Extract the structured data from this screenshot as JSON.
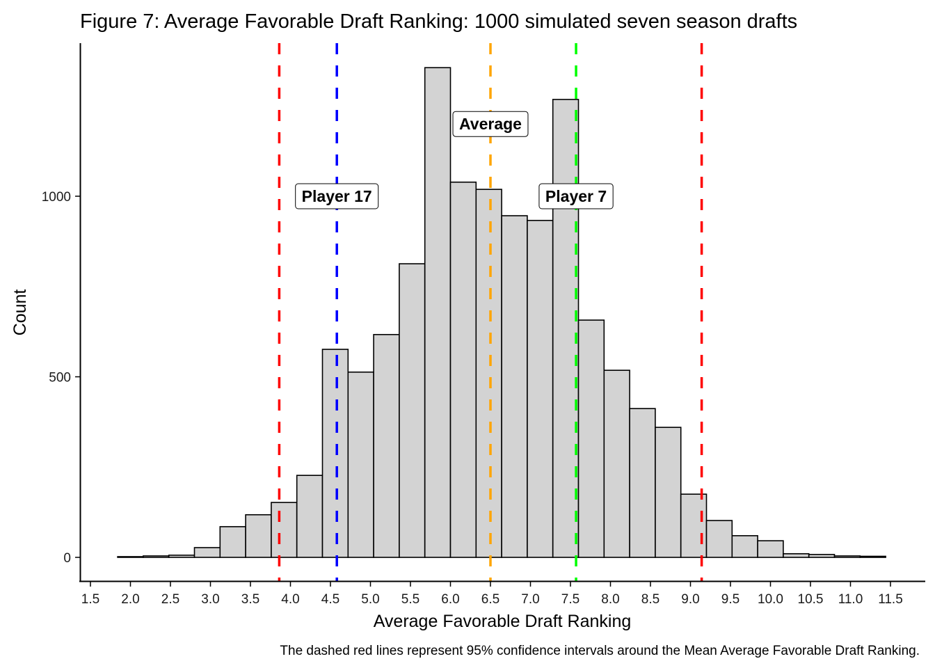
{
  "chart_data": {
    "type": "bar",
    "subtype": "histogram",
    "title": "Figure 7: Average Favorable Draft Ranking: 1000 simulated seven season drafts",
    "xlabel": "Average Favorable Draft Ranking",
    "ylabel": "Count",
    "caption": "The dashed red lines represent 95% confidence intervals around the Mean Average Favorable Draft Ranking.",
    "xlim": [
      1.37,
      11.9
    ],
    "ylim": [
      -65,
      1420
    ],
    "x_ticks": [
      "1.5",
      "2.0",
      "2.5",
      "3.0",
      "3.5",
      "4.0",
      "4.5",
      "5.0",
      "5.5",
      "6.0",
      "6.5",
      "7.0",
      "7.5",
      "8.0",
      "8.5",
      "9.0",
      "9.5",
      "10.0",
      "10.5",
      "11.0",
      "11.5"
    ],
    "y_ticks": [
      "0",
      "500",
      "1000"
    ],
    "bin_start": 1.84,
    "bin_width": 0.32,
    "values": [
      2,
      4,
      6,
      27,
      85,
      118,
      152,
      227,
      576,
      513,
      617,
      813,
      1356,
      1039,
      1019,
      946,
      933,
      1268,
      657,
      518,
      412,
      360,
      175,
      102,
      60,
      46,
      10,
      8,
      4,
      3
    ],
    "bar_fill": "#d3d3d3",
    "bar_stroke": "#000000",
    "grid": false,
    "vlines": [
      {
        "name": "ci-lower",
        "x": 3.86,
        "color": "#ff0000",
        "label": ""
      },
      {
        "name": "player-17",
        "x": 4.58,
        "color": "#0000ff",
        "label": "Player 17",
        "label_y": 1000
      },
      {
        "name": "average",
        "x": 6.5,
        "color": "#ffa500",
        "label": "Average",
        "label_y": 1200
      },
      {
        "name": "player-7",
        "x": 7.57,
        "color": "#00ff00",
        "label": "Player 7",
        "label_y": 1000
      },
      {
        "name": "ci-upper",
        "x": 9.14,
        "color": "#ff0000",
        "label": ""
      }
    ]
  }
}
